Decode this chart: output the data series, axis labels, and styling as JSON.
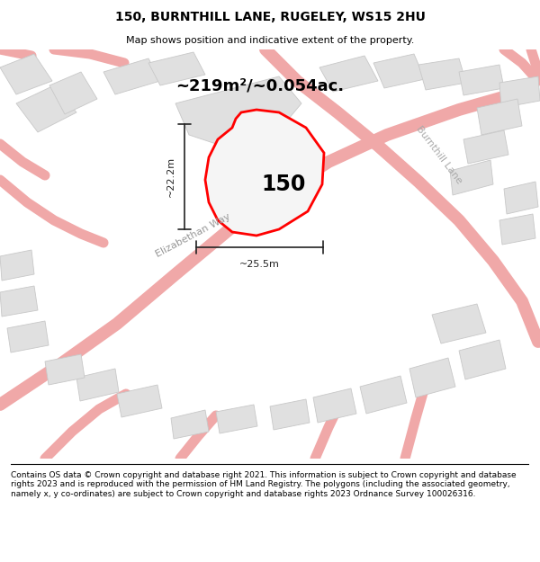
{
  "title": "150, BURNTHILL LANE, RUGELEY, WS15 2HU",
  "subtitle": "Map shows position and indicative extent of the property.",
  "footer": "Contains OS data © Crown copyright and database right 2021. This information is subject to Crown copyright and database rights 2023 and is reproduced with the permission of HM Land Registry. The polygons (including the associated geometry, namely x, y co-ordinates) are subject to Crown copyright and database rights 2023 Ordnance Survey 100026316.",
  "area_label": "~219m²/~0.054ac.",
  "house_number": "150",
  "dim_width": "~25.5m",
  "dim_height": "~22.2m",
  "road_label_eliz": "Elizabethan Way",
  "road_label_burn": "Burnthill Lane",
  "map_bg": "#f2f2f2",
  "building_fill": "#e0e0e0",
  "building_edge": "#c8c8c8",
  "road_color": "#f0a8a8",
  "prop_edge": "#ff0000",
  "prop_fill": "#f5f5f5",
  "dim_color": "#222222",
  "title_fontsize": 10,
  "subtitle_fontsize": 8,
  "footer_fontsize": 6.5,
  "area_fontsize": 13,
  "house_fontsize": 17,
  "dim_fontsize": 8,
  "road_label_fontsize": 8
}
